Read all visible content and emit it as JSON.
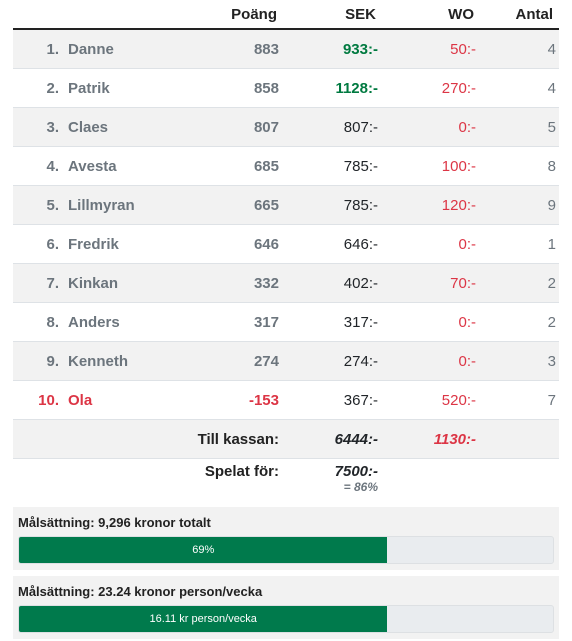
{
  "headers": {
    "pos": "",
    "name": "",
    "points": "Poäng",
    "sek": "SEK",
    "wo": "WO",
    "count": "Antal"
  },
  "rows": [
    {
      "pos": "1.",
      "name": "Danne",
      "points": "883",
      "sek": "933:-",
      "wo": "50:-",
      "count": "4"
    },
    {
      "pos": "2.",
      "name": "Patrik",
      "points": "858",
      "sek": "1128:-",
      "wo": "270:-",
      "count": "4"
    },
    {
      "pos": "3.",
      "name": "Claes",
      "points": "807",
      "sek": "807:-",
      "wo": "0:-",
      "count": "5"
    },
    {
      "pos": "4.",
      "name": "Avesta",
      "points": "685",
      "sek": "785:-",
      "wo": "100:-",
      "count": "8"
    },
    {
      "pos": "5.",
      "name": "Lillmyran",
      "points": "665",
      "sek": "785:-",
      "wo": "120:-",
      "count": "9"
    },
    {
      "pos": "6.",
      "name": "Fredrik",
      "points": "646",
      "sek": "646:-",
      "wo": "0:-",
      "count": "1"
    },
    {
      "pos": "7.",
      "name": "Kinkan",
      "points": "332",
      "sek": "402:-",
      "wo": "70:-",
      "count": "2"
    },
    {
      "pos": "8.",
      "name": "Anders",
      "points": "317",
      "sek": "317:-",
      "wo": "0:-",
      "count": "2"
    },
    {
      "pos": "9.",
      "name": "Kenneth",
      "points": "274",
      "sek": "274:-",
      "wo": "0:-",
      "count": "3"
    },
    {
      "pos": "10.",
      "name": "Ola",
      "points": "-153",
      "sek": "367:-",
      "wo": "520:-",
      "count": "7"
    }
  ],
  "summary": {
    "kassan_label": "Till kassan:",
    "kassan_sek": "6444:-",
    "kassan_wo": "1130:-",
    "played_label": "Spelat för:",
    "played_sek": "7500:-",
    "played_pct": "= 86%"
  },
  "goals": [
    {
      "title": "Målsättning: 9,296 kronor totalt",
      "bar_text": "69%",
      "progress": 0.69
    },
    {
      "title": "Målsättning: 23.24 kronor person/vecka",
      "bar_text": "16.11 kr person/vecka",
      "progress": 0.69
    }
  ],
  "colors": {
    "green": "#007a40",
    "red": "#dc3545",
    "bar_fill": "#007a4c"
  }
}
